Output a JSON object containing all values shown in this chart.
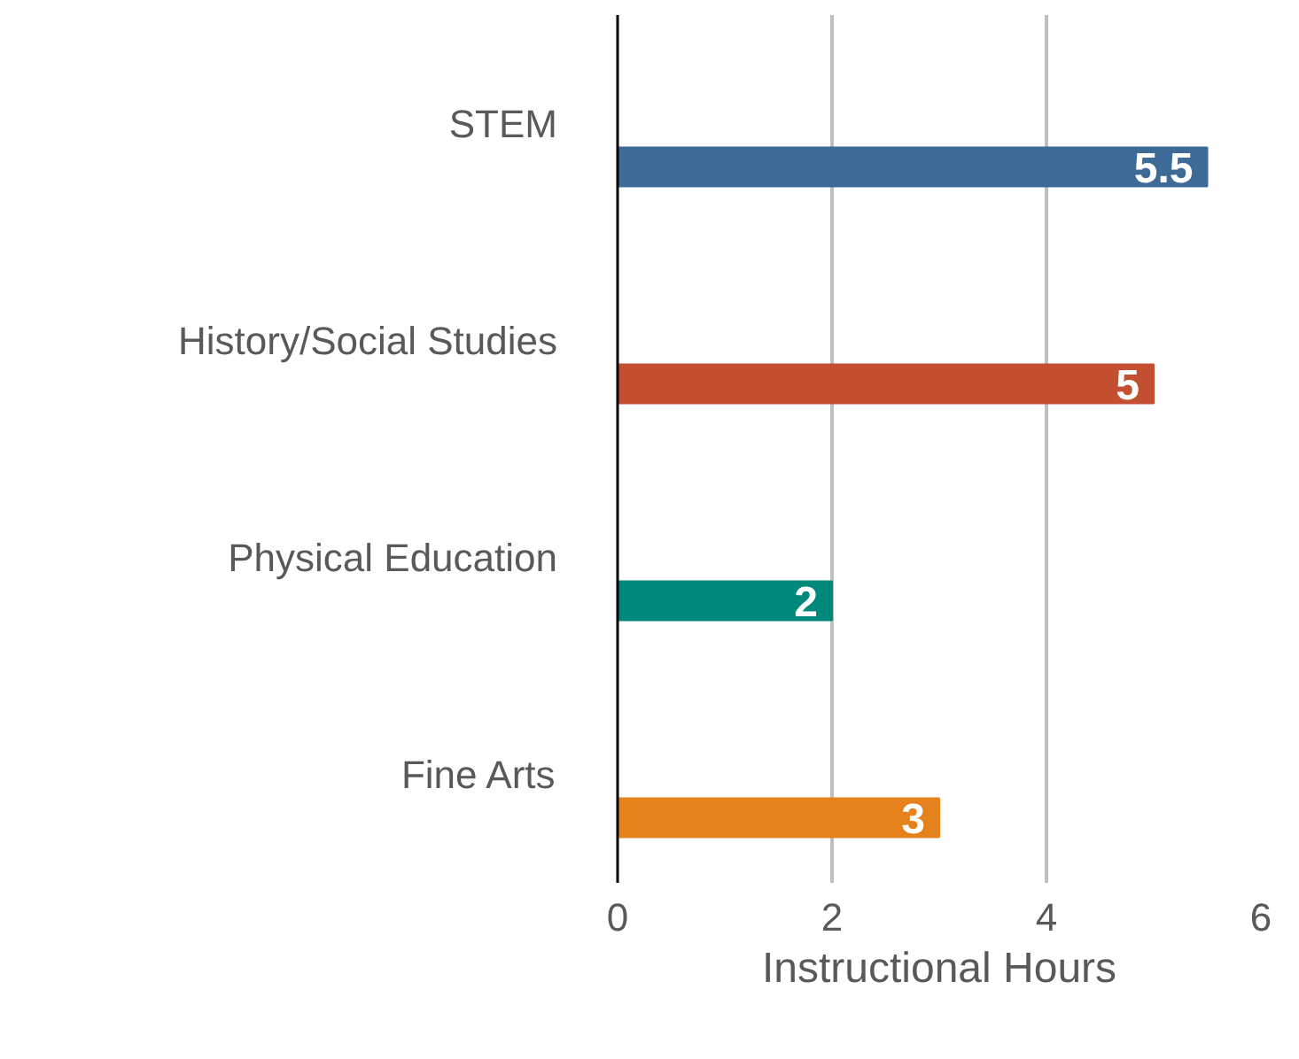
{
  "chart_data": {
    "type": "bar",
    "orientation": "horizontal",
    "xlabel": "Instructional Hours",
    "categories": [
      "STEM",
      "History/Social Studies",
      "Physical Education",
      "Fine Arts"
    ],
    "values": [
      5.5,
      5,
      2,
      3
    ],
    "colors": [
      "#3d6a96",
      "#c44f30",
      "#00897b",
      "#e6821e"
    ],
    "xlim": [
      0,
      6
    ],
    "xticks": [
      0,
      2,
      4,
      6
    ],
    "grid": "x",
    "data_labels": true
  }
}
